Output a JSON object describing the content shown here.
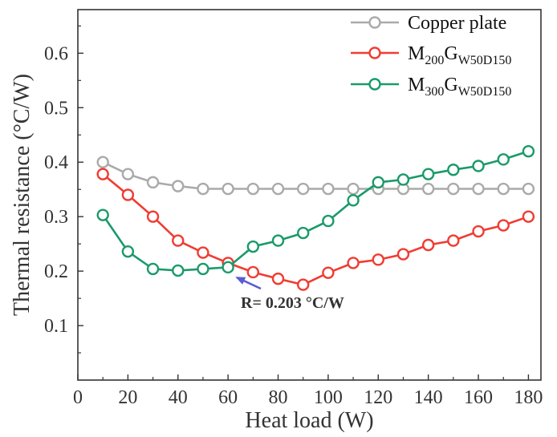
{
  "chart_data": {
    "type": "line",
    "xlabel": "Heat load (W)",
    "ylabel": "Thermal resistance (°C/W)",
    "xlim": [
      0,
      185
    ],
    "ylim": [
      0,
      0.68
    ],
    "xticks": [
      0,
      20,
      40,
      60,
      80,
      100,
      120,
      140,
      160,
      180
    ],
    "yticks": [
      0.1,
      0.2,
      0.3,
      0.4,
      0.5,
      0.6
    ],
    "x_tick_labels": [
      "0",
      "20",
      "40",
      "60",
      "80",
      "100",
      "120",
      "140",
      "160",
      "180"
    ],
    "y_tick_labels": [
      "0.1",
      "0.2",
      "0.3",
      "0.4",
      "0.5",
      "0.6"
    ],
    "grid": false,
    "legend_position": "top-right",
    "series": [
      {
        "name": "Copper plate",
        "name_main": "Copper plate",
        "name_sub": "",
        "name_rest": "",
        "name_sub2": "",
        "color": "#aaaaaa",
        "x": [
          10,
          20,
          30,
          40,
          50,
          60,
          70,
          80,
          90,
          100,
          110,
          120,
          130,
          140,
          150,
          160,
          170,
          180
        ],
        "values": [
          0.4,
          0.378,
          0.363,
          0.356,
          0.351,
          0.351,
          0.351,
          0.351,
          0.351,
          0.351,
          0.351,
          0.351,
          0.351,
          0.351,
          0.351,
          0.351,
          0.351,
          0.351
        ]
      },
      {
        "name": "M200GW50D150",
        "name_main": "M",
        "name_sub": "200",
        "name_rest": "G",
        "name_sub2": "W50D150",
        "color": "#f03c32",
        "x": [
          10,
          20,
          30,
          40,
          50,
          60,
          70,
          80,
          90,
          100,
          110,
          120,
          130,
          140,
          150,
          160,
          170,
          180
        ],
        "values": [
          0.378,
          0.34,
          0.3,
          0.256,
          0.234,
          0.215,
          0.198,
          0.186,
          0.175,
          0.197,
          0.215,
          0.221,
          0.231,
          0.248,
          0.256,
          0.273,
          0.284,
          0.3
        ]
      },
      {
        "name": "M300GW50D150",
        "name_main": "M",
        "name_sub": "300",
        "name_rest": "G",
        "name_sub2": "W50D150",
        "color": "#1a9a6a",
        "x": [
          10,
          20,
          30,
          40,
          50,
          60,
          70,
          80,
          90,
          100,
          110,
          120,
          130,
          140,
          150,
          160,
          170,
          180
        ],
        "values": [
          0.303,
          0.236,
          0.204,
          0.201,
          0.204,
          0.207,
          0.245,
          0.256,
          0.27,
          0.292,
          0.33,
          0.363,
          0.368,
          0.378,
          0.386,
          0.393,
          0.405,
          0.42
        ]
      }
    ],
    "annotation": {
      "text": "R= 0.203 °C/W",
      "x": 60,
      "y": 0.203,
      "arrow_color": "#5b5bd6"
    }
  }
}
